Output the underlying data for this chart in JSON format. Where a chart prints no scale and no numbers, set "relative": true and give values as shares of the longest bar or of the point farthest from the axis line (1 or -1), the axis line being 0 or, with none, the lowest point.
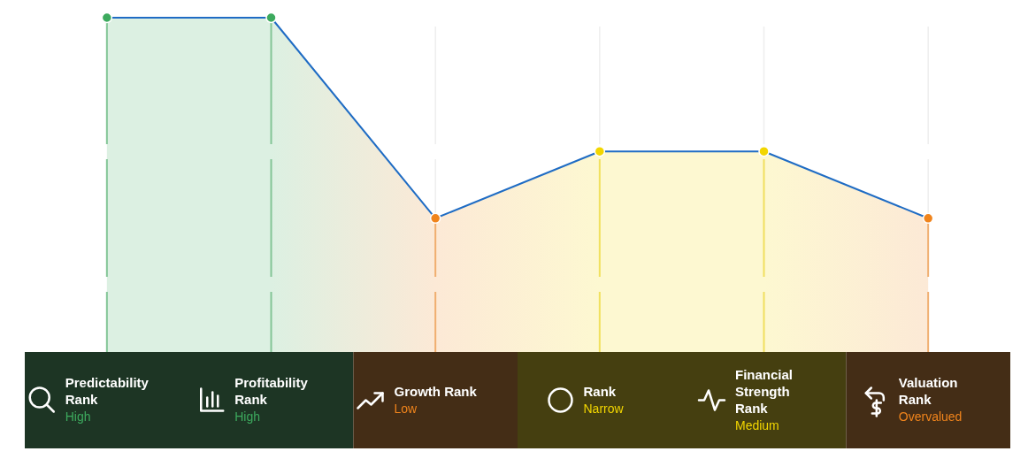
{
  "chart_data": {
    "type": "area",
    "categories": [
      "Predictability Rank",
      "Profitability Rank",
      "Growth Rank",
      "Rank",
      "Financial Strength Rank",
      "Valuation Rank"
    ],
    "relative": true,
    "series": [
      {
        "color": "#1f6cc4",
        "values": [
          1,
          1,
          0.4,
          0.6,
          0.6,
          0.4
        ]
      },
      {
        "type": "lollipop",
        "marker": "circle",
        "colors": [
          "#3daa5e",
          "#3daa5e",
          "#f0841c",
          "#f2d600",
          "#f2d600",
          "#f0841c"
        ],
        "values": [
          1,
          1,
          0.4,
          0.6,
          0.6,
          0.4
        ]
      }
    ],
    "annotations": [
      "High",
      "High",
      "Low",
      "Narrow",
      "Medium",
      "Overvalued"
    ],
    "grid": "x"
  }
}
